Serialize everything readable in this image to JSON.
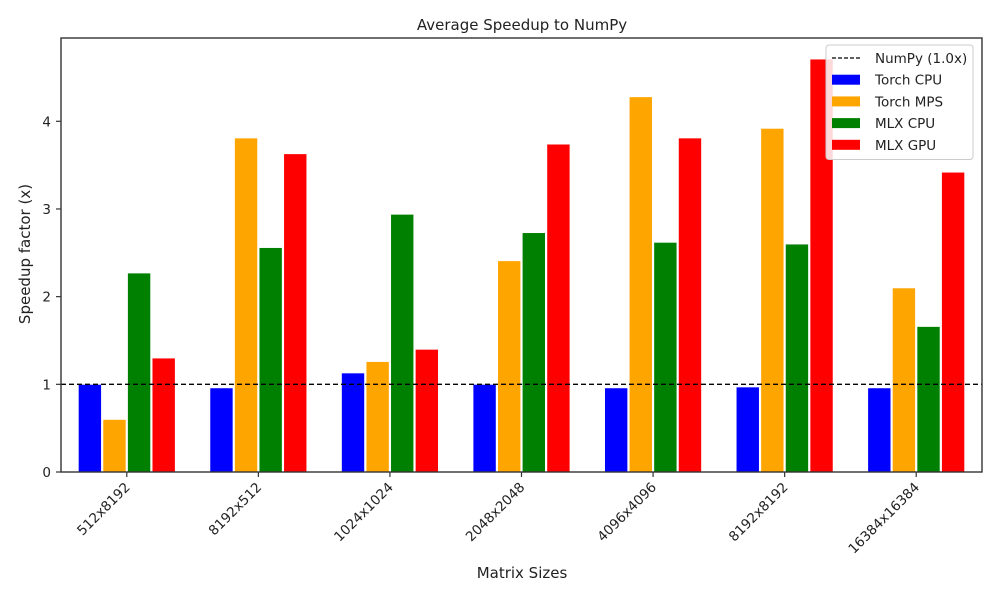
{
  "chart_data": {
    "type": "bar",
    "title": "Average Speedup to NumPy",
    "xlabel": "Matrix Sizes",
    "ylabel": "Speedup factor (x)",
    "categories": [
      "512x8192",
      "8192x512",
      "1024x1024",
      "2048x2048",
      "4096x4096",
      "8192x8192",
      "16384x16384"
    ],
    "series": [
      {
        "name": "Torch CPU",
        "color": "#0000ff",
        "values": [
          1.0,
          0.96,
          1.13,
          1.0,
          0.96,
          0.97,
          0.96
        ]
      },
      {
        "name": "Torch MPS",
        "color": "#ffa500",
        "values": [
          0.6,
          3.81,
          1.26,
          2.41,
          4.28,
          3.92,
          2.1
        ]
      },
      {
        "name": "MLX CPU",
        "color": "#008000",
        "values": [
          2.27,
          2.56,
          2.94,
          2.73,
          2.62,
          2.6,
          1.66
        ]
      },
      {
        "name": "MLX GPU",
        "color": "#ff0000",
        "values": [
          1.3,
          3.63,
          1.4,
          3.74,
          3.81,
          4.71,
          3.42
        ]
      }
    ],
    "reference_line": {
      "name": "NumPy (1.0x)",
      "value": 1.0,
      "style": "dashed",
      "color": "#000000"
    },
    "ylim": [
      0,
      4.95
    ],
    "yticks": [
      0,
      1,
      2,
      3,
      4
    ],
    "xtick_rotation": 45,
    "legend": "top-right",
    "grid": false
  }
}
